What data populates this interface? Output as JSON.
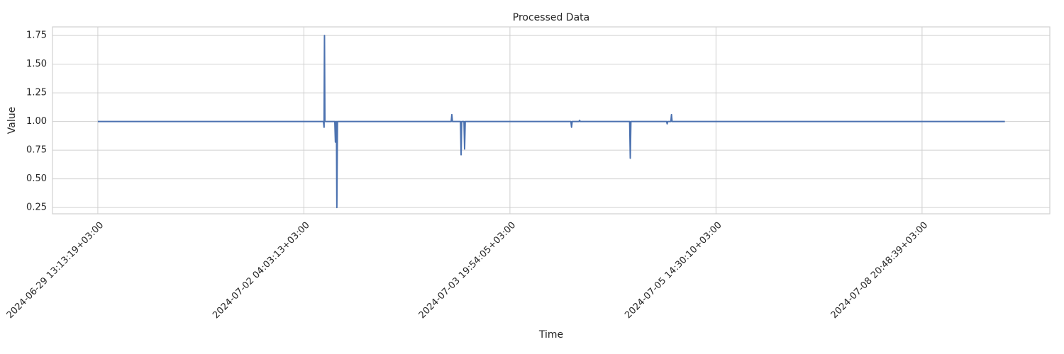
{
  "chart_data": {
    "type": "line",
    "title": "Processed Data",
    "x_label": "Time",
    "y_label": "Value",
    "x": [
      0,
      200,
      400,
      600,
      800,
      1000,
      1095,
      1098,
      1100,
      1102,
      1104,
      1150,
      1153,
      1155,
      1158,
      1160,
      1163,
      1166,
      1300,
      1500,
      1715,
      1718,
      1721,
      1760,
      1763,
      1766,
      1777,
      1780,
      1783,
      1900,
      2100,
      2296,
      2299,
      2302,
      2335,
      2338,
      2341,
      2581,
      2584,
      2587,
      2760,
      2763,
      2766,
      2781,
      2784,
      2787,
      3000,
      3200,
      3400,
      3600,
      3800,
      4000,
      4200,
      4402
    ],
    "series": [
      {
        "color": "#4c72b0",
        "values": [
          1.0,
          1.0,
          1.0,
          1.0,
          1.0,
          1.0,
          1.0,
          0.95,
          1.75,
          1.0,
          1.0,
          1.0,
          0.82,
          1.0,
          1.0,
          0.25,
          1.0,
          1.0,
          1.0,
          1.0,
          1.0,
          1.06,
          1.0,
          1.0,
          0.71,
          1.0,
          1.0,
          0.76,
          1.0,
          1.0,
          1.0,
          1.0,
          0.95,
          1.0,
          1.0,
          1.01,
          1.0,
          1.0,
          0.68,
          1.0,
          1.0,
          0.98,
          1.0,
          1.0,
          1.06,
          1.0,
          1.0,
          1.0,
          1.0,
          1.0,
          1.0,
          1.0,
          1.0,
          1.0
        ]
      }
    ],
    "xlim": [
      -220,
      4620
    ],
    "xticks": [
      {
        "value": 0,
        "label": "2024-06-29 13:13:19+03:00"
      },
      {
        "value": 1000,
        "label": "2024-07-02 04:03:13+03:00"
      },
      {
        "value": 2000,
        "label": "2024-07-03 19:54:05+03:00"
      },
      {
        "value": 3000,
        "label": "2024-07-05 14:30:10+03:00"
      },
      {
        "value": 4000,
        "label": "2024-07-08 20:48:39+03:00"
      }
    ],
    "ylim": [
      0.195,
      1.825
    ],
    "yticks": [
      0.25,
      {
        "value": 0.5,
        "label": "0.50"
      },
      0.75,
      {
        "value": 1.0,
        "label": "1.00"
      },
      1.25,
      {
        "value": 1.5,
        "label": "1.50"
      },
      1.75
    ],
    "grid": true
  }
}
